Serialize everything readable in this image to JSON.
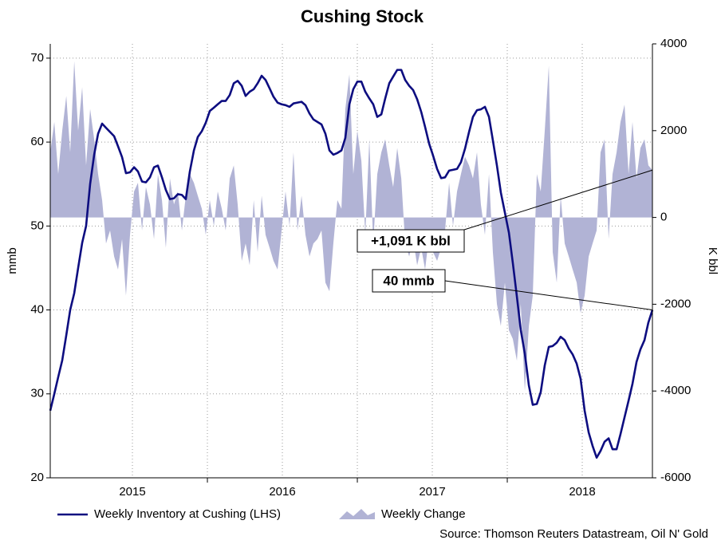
{
  "chart_data": {
    "type": "line-area",
    "title": "Cushing Stock",
    "y_label": "mmb",
    "y2_label": "K bbl",
    "source": "Source: Thomson Reuters Datastream, Oil N' Gold",
    "x": [
      2014.952,
      2014.979,
      2015.005,
      2015.032,
      2015.059,
      2015.085,
      2015.112,
      2015.138,
      2015.165,
      2015.191,
      2015.218,
      2015.245,
      2015.271,
      2015.298,
      2015.324,
      2015.351,
      2015.378,
      2015.404,
      2015.431,
      2015.457,
      2015.484,
      2015.511,
      2015.537,
      2015.564,
      2015.59,
      2015.617,
      2015.644,
      2015.67,
      2015.697,
      2015.723,
      2015.75,
      2015.777,
      2015.803,
      2015.83,
      2015.856,
      2015.883,
      2015.91,
      2015.936,
      2015.963,
      2015.989,
      2016.016,
      2016.043,
      2016.069,
      2016.096,
      2016.122,
      2016.149,
      2016.176,
      2016.202,
      2016.229,
      2016.255,
      2016.282,
      2016.309,
      2016.335,
      2016.362,
      2016.388,
      2016.415,
      2016.441,
      2016.468,
      2016.495,
      2016.521,
      2016.548,
      2016.574,
      2016.601,
      2016.628,
      2016.654,
      2016.681,
      2016.707,
      2016.734,
      2016.761,
      2016.787,
      2016.814,
      2016.84,
      2016.867,
      2016.894,
      2016.92,
      2016.947,
      2016.973,
      2017.0,
      2017.027,
      2017.053,
      2017.08,
      2017.106,
      2017.133,
      2017.16,
      2017.186,
      2017.213,
      2017.239,
      2017.266,
      2017.293,
      2017.319,
      2017.346,
      2017.372,
      2017.399,
      2017.426,
      2017.452,
      2017.479,
      2017.505,
      2017.532,
      2017.559,
      2017.585,
      2017.612,
      2017.638,
      2017.665,
      2017.691,
      2017.718,
      2017.745,
      2017.771,
      2017.798,
      2017.824,
      2017.851,
      2017.878,
      2017.904,
      2017.931,
      2017.957,
      2017.984,
      2018.011,
      2018.037,
      2018.064,
      2018.09,
      2018.117,
      2018.144,
      2018.17,
      2018.197,
      2018.223,
      2018.25,
      2018.277,
      2018.303,
      2018.33,
      2018.356,
      2018.383,
      2018.41,
      2018.436,
      2018.463,
      2018.489,
      2018.516,
      2018.543,
      2018.569,
      2018.596,
      2018.622,
      2018.649,
      2018.676,
      2018.702,
      2018.729,
      2018.755,
      2018.782,
      2018.809,
      2018.835,
      2018.862,
      2018.888,
      2018.915,
      2018.941,
      2018.968
    ],
    "series": [
      {
        "name": "Weekly Change",
        "kind": "area",
        "axis": "y2",
        "color": "#b1b3d5",
        "values": [
          1500,
          2200,
          1000,
          2000,
          2800,
          1500,
          3600,
          2000,
          3000,
          1200,
          2500,
          1800,
          1000,
          400,
          -600,
          -300,
          -900,
          -1200,
          -500,
          -1800,
          -400,
          600,
          800,
          -300,
          700,
          300,
          -500,
          1000,
          400,
          -700,
          900,
          300,
          600,
          -300,
          500,
          1000,
          800,
          500,
          200,
          -400,
          400,
          -200,
          600,
          200,
          -300,
          900,
          1200,
          300,
          -1000,
          -600,
          -1100,
          400,
          -800,
          500,
          -400,
          -700,
          -1000,
          -1200,
          -300,
          600,
          -200,
          1500,
          -300,
          500,
          -400,
          -900,
          -600,
          -500,
          -300,
          -1500,
          -1700,
          -600,
          400,
          200,
          2500,
          3300,
          1000,
          2000,
          1300,
          -400,
          1800,
          -600,
          1000,
          1500,
          1800,
          1200,
          700,
          1600,
          900,
          -600,
          -900,
          -500,
          -1100,
          -700,
          -1200,
          -400,
          -800,
          -1000,
          -700,
          -300,
          800,
          -200,
          600,
          1000,
          1400,
          1200,
          900,
          1500,
          300,
          -400,
          1000,
          -800,
          -2000,
          -2500,
          -1500,
          -2600,
          -2800,
          -3300,
          -2000,
          -4000,
          -2500,
          -1800,
          1000,
          600,
          2000,
          3500,
          -800,
          -1500,
          500,
          -600,
          -900,
          -1200,
          -1500,
          -2200,
          -1800,
          -900,
          -600,
          -300,
          1500,
          1800,
          -500,
          1000,
          1500,
          2200,
          2600,
          1000,
          2200,
          900,
          1600,
          1800,
          1200,
          1091
        ]
      },
      {
        "name": "Weekly Inventory at Cushing (LHS)",
        "kind": "line",
        "axis": "y",
        "color": "#0d0d80",
        "values": [
          28,
          30,
          32,
          34,
          37,
          40,
          42,
          45,
          48,
          50,
          55,
          58.5,
          61,
          62.2,
          61.7,
          61.2,
          60.7,
          59.5,
          58.2,
          56.3,
          56.4,
          57,
          56.5,
          55.3,
          55.2,
          55.8,
          57,
          57.2,
          55.8,
          54.3,
          53.2,
          53.3,
          53.8,
          53.7,
          53.2,
          56.5,
          59,
          60.6,
          61.3,
          62.3,
          63.7,
          64.1,
          64.5,
          64.9,
          64.9,
          65.6,
          67,
          67.3,
          66.7,
          65.5,
          66,
          66.3,
          67,
          67.9,
          67.4,
          66.4,
          65.4,
          64.7,
          64.5,
          64.4,
          64.2,
          64.6,
          64.7,
          64.8,
          64.4,
          63.4,
          62.7,
          62.4,
          62.1,
          61,
          59,
          58.5,
          58.7,
          59,
          60.5,
          64.5,
          66.3,
          67.2,
          67.2,
          66,
          65.2,
          64.5,
          63,
          63.3,
          65.2,
          67,
          67.8,
          68.6,
          68.6,
          67.4,
          66.7,
          66.2,
          65.1,
          63.6,
          61.8,
          59.8,
          58.4,
          56.8,
          55.7,
          55.8,
          56.6,
          56.7,
          56.8,
          57.6,
          59.2,
          61.2,
          63,
          63.8,
          63.9,
          64.2,
          63,
          60.2,
          57.2,
          54,
          51.6,
          49.2,
          45.6,
          41.6,
          37.6,
          34.8,
          31,
          28.7,
          28.8,
          30.2,
          33.4,
          35.6,
          35.7,
          36.1,
          36.8,
          36.4,
          35.4,
          34.7,
          33.6,
          31.8,
          28,
          25.4,
          23.8,
          22.4,
          23.2,
          24.3,
          24.7,
          23.4,
          23.4,
          25.2,
          27.2,
          29.2,
          31.2,
          33.8,
          35.3,
          36.4,
          38.5,
          40
        ]
      }
    ],
    "xlim": [
      2014.952,
      2018.968
    ],
    "xticks": [
      {
        "value": 2015.5,
        "label": "2015"
      },
      {
        "value": 2016.5,
        "label": "2016"
      },
      {
        "value": 2017.5,
        "label": "2017"
      },
      {
        "value": 2018.5,
        "label": "2018"
      }
    ],
    "ylim": [
      20,
      71.7
    ],
    "yticks": [
      20,
      30,
      40,
      50,
      60,
      70
    ],
    "y2lim": [
      -6000,
      4000
    ],
    "y2ticks": [
      -6000,
      -4000,
      -2000,
      0,
      2000,
      4000
    ],
    "grid": true,
    "annotations": [
      {
        "text": "+1,091 K bbl",
        "series": 0
      },
      {
        "text": "40 mmb",
        "series": 1
      }
    ]
  }
}
